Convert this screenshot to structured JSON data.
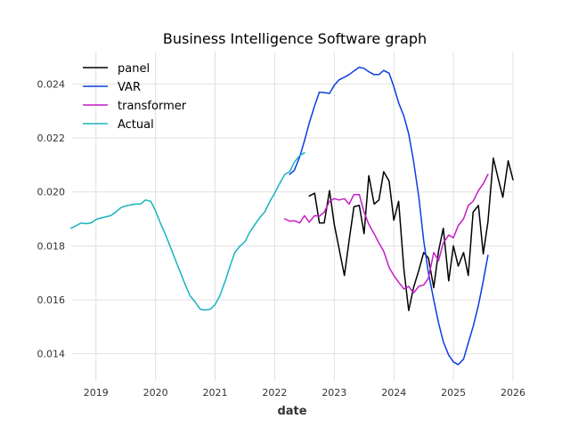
{
  "chart_data": {
    "type": "line",
    "title": "Business Intelligence Software graph",
    "xlabel": "date",
    "ylabel": "",
    "xlim": [
      2018.6,
      2026.0
    ],
    "ylim": [
      0.013,
      0.0252
    ],
    "x_ticks": [
      2019,
      2020,
      2021,
      2022,
      2023,
      2024,
      2025,
      2026
    ],
    "x_tick_labels": [
      "2019",
      "2020",
      "2021",
      "2022",
      "2023",
      "2024",
      "2025",
      "2026"
    ],
    "y_ticks": [
      0.014,
      0.016,
      0.018,
      0.02,
      0.022,
      0.024
    ],
    "y_tick_labels": [
      "0.014",
      "0.016",
      "0.018",
      "0.020",
      "0.022",
      "0.024"
    ],
    "grid": true,
    "legend_position": "top-left",
    "series": [
      {
        "name": "panel",
        "color": "#000000",
        "x": [
          2022.58,
          2022.67,
          2022.75,
          2022.83,
          2022.92,
          2023.0,
          2023.08,
          2023.17,
          2023.25,
          2023.33,
          2023.42,
          2023.5,
          2023.58,
          2023.67,
          2023.75,
          2023.83,
          2023.92,
          2024.0,
          2024.08,
          2024.17,
          2024.25,
          2024.33,
          2024.42,
          2024.5,
          2024.58,
          2024.67,
          2024.75,
          2024.83,
          2024.92,
          2025.0,
          2025.08,
          2025.17,
          2025.25,
          2025.33,
          2025.42,
          2025.5,
          2025.58,
          2025.67,
          2025.75,
          2025.83,
          2025.92,
          2026.0
        ],
        "values": [
          0.01985,
          0.01995,
          0.01885,
          0.01885,
          0.02005,
          0.0188,
          0.0179,
          0.0169,
          0.0182,
          0.01945,
          0.0195,
          0.01845,
          0.0206,
          0.01955,
          0.0197,
          0.02075,
          0.0204,
          0.01895,
          0.01965,
          0.0171,
          0.0156,
          0.01645,
          0.0171,
          0.01775,
          0.01755,
          0.01645,
          0.0178,
          0.01865,
          0.0167,
          0.018,
          0.01725,
          0.01775,
          0.0169,
          0.01925,
          0.0195,
          0.0177,
          0.0189,
          0.02125,
          0.0205,
          0.0198,
          0.02115,
          0.02045
        ]
      },
      {
        "name": "VAR",
        "color": "#0b3de3",
        "x": [
          2022.25,
          2022.33,
          2022.42,
          2022.5,
          2022.58,
          2022.67,
          2022.75,
          2022.83,
          2022.92,
          2023.0,
          2023.08,
          2023.17,
          2023.25,
          2023.33,
          2023.42,
          2023.5,
          2023.58,
          2023.67,
          2023.75,
          2023.83,
          2023.92,
          2024.0,
          2024.08,
          2024.17,
          2024.25,
          2024.33,
          2024.42,
          2024.5,
          2024.58,
          2024.67,
          2024.75,
          2024.83,
          2024.92,
          2025.0,
          2025.08,
          2025.17,
          2025.25,
          2025.33,
          2025.42,
          2025.5,
          2025.58
        ],
        "values": [
          0.02065,
          0.0208,
          0.0213,
          0.0219,
          0.02255,
          0.0232,
          0.0237,
          0.02368,
          0.02365,
          0.02395,
          0.02415,
          0.02425,
          0.02435,
          0.02448,
          0.02462,
          0.02458,
          0.02445,
          0.02435,
          0.02435,
          0.0245,
          0.0244,
          0.0239,
          0.0233,
          0.0228,
          0.02215,
          0.02115,
          0.0198,
          0.0182,
          0.017,
          0.016,
          0.01515,
          0.01445,
          0.01395,
          0.0137,
          0.0136,
          0.0138,
          0.0144,
          0.015,
          0.0158,
          0.0167,
          0.01765
        ]
      },
      {
        "name": "transformer",
        "color": "#c41cc4",
        "x": [
          2022.17,
          2022.25,
          2022.33,
          2022.42,
          2022.5,
          2022.58,
          2022.67,
          2022.75,
          2022.83,
          2022.92,
          2023.0,
          2023.08,
          2023.17,
          2023.25,
          2023.33,
          2023.42,
          2023.5,
          2023.58,
          2023.67,
          2023.75,
          2023.83,
          2023.92,
          2024.0,
          2024.08,
          2024.17,
          2024.25,
          2024.33,
          2024.42,
          2024.5,
          2024.58,
          2024.67,
          2024.75,
          2024.83,
          2024.92,
          2025.0,
          2025.08,
          2025.17,
          2025.25,
          2025.33,
          2025.42,
          2025.5,
          2025.58
        ],
        "values": [
          0.019,
          0.01892,
          0.01893,
          0.01885,
          0.01912,
          0.01888,
          0.01912,
          0.0191,
          0.01925,
          0.01965,
          0.01975,
          0.0197,
          0.01975,
          0.01955,
          0.0199,
          0.0199,
          0.01925,
          0.0188,
          0.01845,
          0.0181,
          0.0178,
          0.0172,
          0.0169,
          0.01665,
          0.0164,
          0.0165,
          0.01625,
          0.0165,
          0.01655,
          0.0168,
          0.01775,
          0.01745,
          0.0181,
          0.0184,
          0.0183,
          0.01875,
          0.019,
          0.0195,
          0.01965,
          0.02005,
          0.0203,
          0.02065
        ]
      },
      {
        "name": "Actual",
        "color": "#17b3bd",
        "x": [
          2018.58,
          2018.67,
          2018.75,
          2018.83,
          2018.92,
          2019.0,
          2019.08,
          2019.17,
          2019.25,
          2019.33,
          2019.42,
          2019.5,
          2019.58,
          2019.67,
          2019.75,
          2019.83,
          2019.92,
          2020.0,
          2020.08,
          2020.17,
          2020.25,
          2020.33,
          2020.42,
          2020.5,
          2020.58,
          2020.67,
          2020.75,
          2020.83,
          2020.92,
          2021.0,
          2021.08,
          2021.17,
          2021.25,
          2021.33,
          2021.42,
          2021.5,
          2021.58,
          2021.67,
          2021.75,
          2021.83,
          2021.92,
          2022.0,
          2022.08,
          2022.17,
          2022.25,
          2022.33,
          2022.42,
          2022.5
        ],
        "values": [
          0.01865,
          0.01875,
          0.01885,
          0.01882,
          0.01885,
          0.01898,
          0.01903,
          0.01908,
          0.01912,
          0.01925,
          0.01942,
          0.01948,
          0.01952,
          0.01955,
          0.01955,
          0.0197,
          0.01965,
          0.0193,
          0.01885,
          0.0184,
          0.01795,
          0.0175,
          0.017,
          0.01655,
          0.01615,
          0.0159,
          0.01565,
          0.01562,
          0.01565,
          0.01582,
          0.01615,
          0.0167,
          0.01725,
          0.01775,
          0.018,
          0.01815,
          0.0185,
          0.0188,
          0.01905,
          0.01925,
          0.01965,
          0.01995,
          0.0203,
          0.02065,
          0.02075,
          0.0211,
          0.02135,
          0.02145
        ]
      }
    ]
  }
}
